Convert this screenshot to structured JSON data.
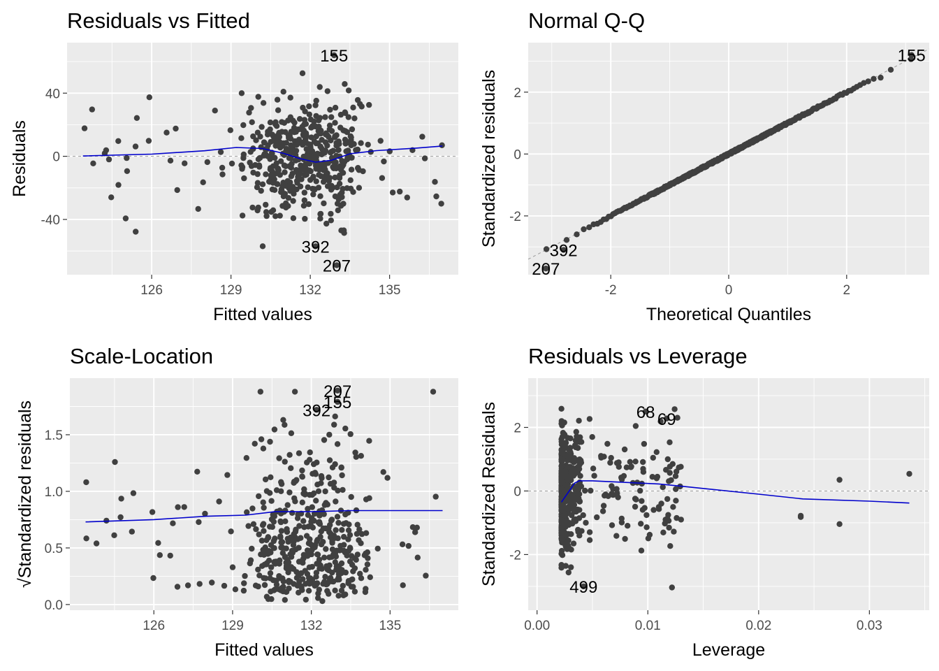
{
  "colors": {
    "panel_bg": "#ebebeb",
    "grid": "#ffffff",
    "point": "#404040",
    "smooth": "#0000cc",
    "refline": "#999999",
    "text": "#000000",
    "tick_text": "#4d4d4d"
  },
  "chart_data": [
    {
      "type": "scatter",
      "title": "Residuals vs Fitted",
      "xlabel": "Fitted values",
      "ylabel": "Residuals",
      "xlim": [
        122.8,
        137.6
      ],
      "ylim": [
        -75,
        72
      ],
      "xticks": [
        126,
        129,
        132,
        135
      ],
      "xtick_labels": [
        "126",
        "129",
        "132",
        "135"
      ],
      "yticks": [
        40,
        0,
        -40
      ],
      "ytick_labels": [
        "40",
        "0",
        "-40"
      ],
      "reference_line": 0,
      "grid": true,
      "point_cloud": {
        "n": 500,
        "x_range": [
          123.4,
          137.0
        ],
        "y_range": [
          -57,
          66
        ],
        "clusters_at": [
          130.6,
          131.4,
          132.4,
          133.2
        ]
      },
      "smooth": [
        [
          123.4,
          0.2
        ],
        [
          126.0,
          1.4
        ],
        [
          128.0,
          3.5
        ],
        [
          129.2,
          5.6
        ],
        [
          130.2,
          4.9
        ],
        [
          131.0,
          1.8
        ],
        [
          131.6,
          -1.4
        ],
        [
          132.2,
          -3.7
        ],
        [
          132.8,
          -2.5
        ],
        [
          133.5,
          1.6
        ],
        [
          134.5,
          3.6
        ],
        [
          136.0,
          5.2
        ],
        [
          137.0,
          6.5
        ]
      ],
      "annotations": [
        {
          "text": "155",
          "x": 132.9,
          "y": 64
        },
        {
          "text": "392",
          "x": 132.2,
          "y": -57
        },
        {
          "text": "207",
          "x": 133.0,
          "y": -69
        }
      ],
      "label_font": 24
    },
    {
      "type": "scatter",
      "title": "Normal Q-Q",
      "xlabel": "Theoretical Quantiles",
      "ylabel": "Standardized residuals",
      "xlim": [
        -3.4,
        3.4
      ],
      "ylim": [
        -3.9,
        3.6
      ],
      "xticks": [
        -2,
        0,
        2
      ],
      "xtick_labels": [
        "-2",
        "0",
        "2"
      ],
      "yticks": [
        2,
        0,
        -2
      ],
      "ytick_labels": [
        "2",
        "0",
        "-2"
      ],
      "reference_diagonal": true,
      "grid": true,
      "point_cloud": {
        "n": 500,
        "x_range": [
          -3.1,
          3.1
        ],
        "y_range": [
          -3.3,
          3.1
        ]
      },
      "annotations": [
        {
          "text": "155",
          "x": 3.1,
          "y": 3.2
        },
        {
          "text": "392",
          "x": -2.8,
          "y": -3.1
        },
        {
          "text": "207",
          "x": -3.1,
          "y": -3.7
        }
      ],
      "label_font": 24
    },
    {
      "type": "scatter",
      "title": "Scale-Location",
      "xlabel": "Fitted values",
      "ylabel": "√Standardized residuals",
      "xlim": [
        122.8,
        137.6
      ],
      "ylim": [
        -0.05,
        2.0
      ],
      "xticks": [
        126,
        129,
        132,
        135
      ],
      "xtick_labels": [
        "126",
        "129",
        "132",
        "135"
      ],
      "yticks": [
        1.5,
        1.0,
        0.5,
        0.0
      ],
      "ytick_labels": [
        "1.5",
        "1.0",
        "0.5",
        "0.0"
      ],
      "grid": true,
      "point_cloud": {
        "n": 500,
        "x_range": [
          123.4,
          137.0
        ],
        "y_range": [
          0.03,
          1.88
        ],
        "clusters_at": [
          130.6,
          131.4,
          132.4,
          133.2
        ]
      },
      "smooth": [
        [
          123.4,
          0.73
        ],
        [
          126.0,
          0.75
        ],
        [
          128.0,
          0.78
        ],
        [
          129.5,
          0.79
        ],
        [
          130.6,
          0.82
        ],
        [
          132.0,
          0.82
        ],
        [
          133.5,
          0.83
        ],
        [
          135.0,
          0.83
        ],
        [
          137.0,
          0.83
        ]
      ],
      "annotations": [
        {
          "text": "207",
          "x": 133.0,
          "y": 1.89
        },
        {
          "text": "155",
          "x": 133.0,
          "y": 1.79
        },
        {
          "text": "392",
          "x": 132.2,
          "y": 1.72
        }
      ],
      "label_font": 24
    },
    {
      "type": "scatter",
      "title": "Residuals vs Leverage",
      "xlabel": "Leverage",
      "ylabel": "Standardized Residuals",
      "xlim": [
        -0.0008,
        0.0354
      ],
      "ylim": [
        -3.75,
        3.55
      ],
      "xticks": [
        0.0,
        0.01,
        0.02,
        0.03
      ],
      "xtick_labels": [
        "0.00",
        "0.01",
        "0.02",
        "0.03"
      ],
      "yticks": [
        2,
        0,
        -2
      ],
      "ytick_labels": [
        "2",
        "0",
        "-2"
      ],
      "reference_line": 0,
      "grid": true,
      "point_cloud": {
        "n": 500,
        "x_range": [
          0.0022,
          0.0336
        ],
        "y_range": [
          -3.6,
          3.3
        ]
      },
      "smooth": [
        [
          0.0022,
          -0.35
        ],
        [
          0.0026,
          -0.15
        ],
        [
          0.003,
          0.05
        ],
        [
          0.0034,
          0.25
        ],
        [
          0.0038,
          0.32
        ],
        [
          0.005,
          0.32
        ],
        [
          0.008,
          0.27
        ],
        [
          0.011,
          0.22
        ],
        [
          0.013,
          0.15
        ],
        [
          0.02,
          -0.1
        ],
        [
          0.024,
          -0.25
        ],
        [
          0.03,
          -0.32
        ],
        [
          0.0336,
          -0.38
        ]
      ],
      "annotations": [
        {
          "text": "68",
          "x": 0.0098,
          "y": 2.5
        },
        {
          "text": "69",
          "x": 0.0117,
          "y": 2.28
        },
        {
          "text": "499",
          "x": 0.0042,
          "y": -3.0
        }
      ],
      "label_font": 24
    }
  ]
}
